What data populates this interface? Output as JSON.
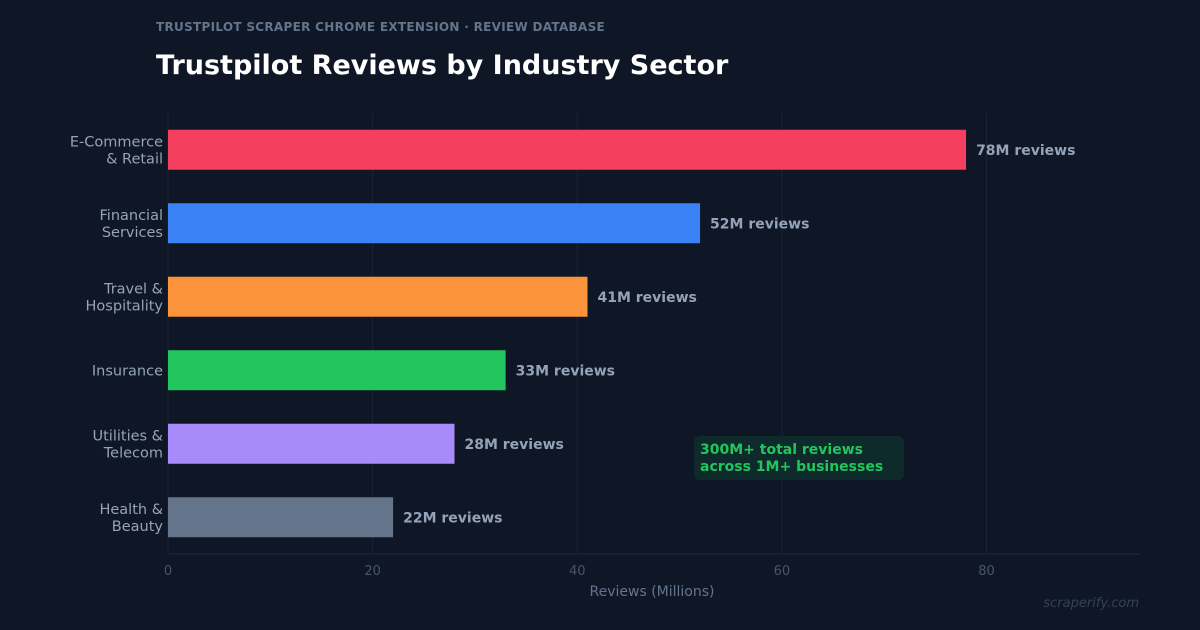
{
  "header": {
    "eyebrow": "TRUSTPILOT SCRAPER CHROME EXTENSION  ·  REVIEW DATABASE",
    "title": "Trustpilot Reviews by Industry Sector"
  },
  "chart_data": {
    "type": "bar",
    "orientation": "horizontal",
    "categories": [
      [
        "E-Commerce",
        "& Retail"
      ],
      [
        "Financial",
        "Services"
      ],
      [
        "Travel &",
        "Hospitality"
      ],
      [
        "Insurance"
      ],
      [
        "Utilities &",
        "Telecom"
      ],
      [
        "Health &",
        "Beauty"
      ]
    ],
    "values": [
      78,
      52,
      41,
      33,
      28,
      22
    ],
    "data_labels": [
      "78M reviews",
      "52M reviews",
      "41M reviews",
      "33M reviews",
      "28M reviews",
      "22M reviews"
    ],
    "colors": [
      "#f43f5e",
      "#3b82f6",
      "#fb923c",
      "#22c55e",
      "#a78bfa",
      "#64748b"
    ],
    "xlabel": "Reviews (Millions)",
    "ylabel": "",
    "xlim": [
      0,
      95
    ],
    "xticks": [
      0,
      20,
      40,
      60,
      80
    ],
    "grid": "vertical",
    "annotation": [
      "300M+ total reviews",
      "across 1M+ businesses"
    ]
  },
  "footer": {
    "watermark": "scraperify.com"
  },
  "theme": {
    "background": "#0f1727",
    "grid": "#1a2436",
    "axis_text": "#94a3b8",
    "tick_text": "#475569",
    "label_text": "#94a3b8",
    "annotation_text": "#22c55e",
    "annotation_bg": "#0f2a2a"
  }
}
